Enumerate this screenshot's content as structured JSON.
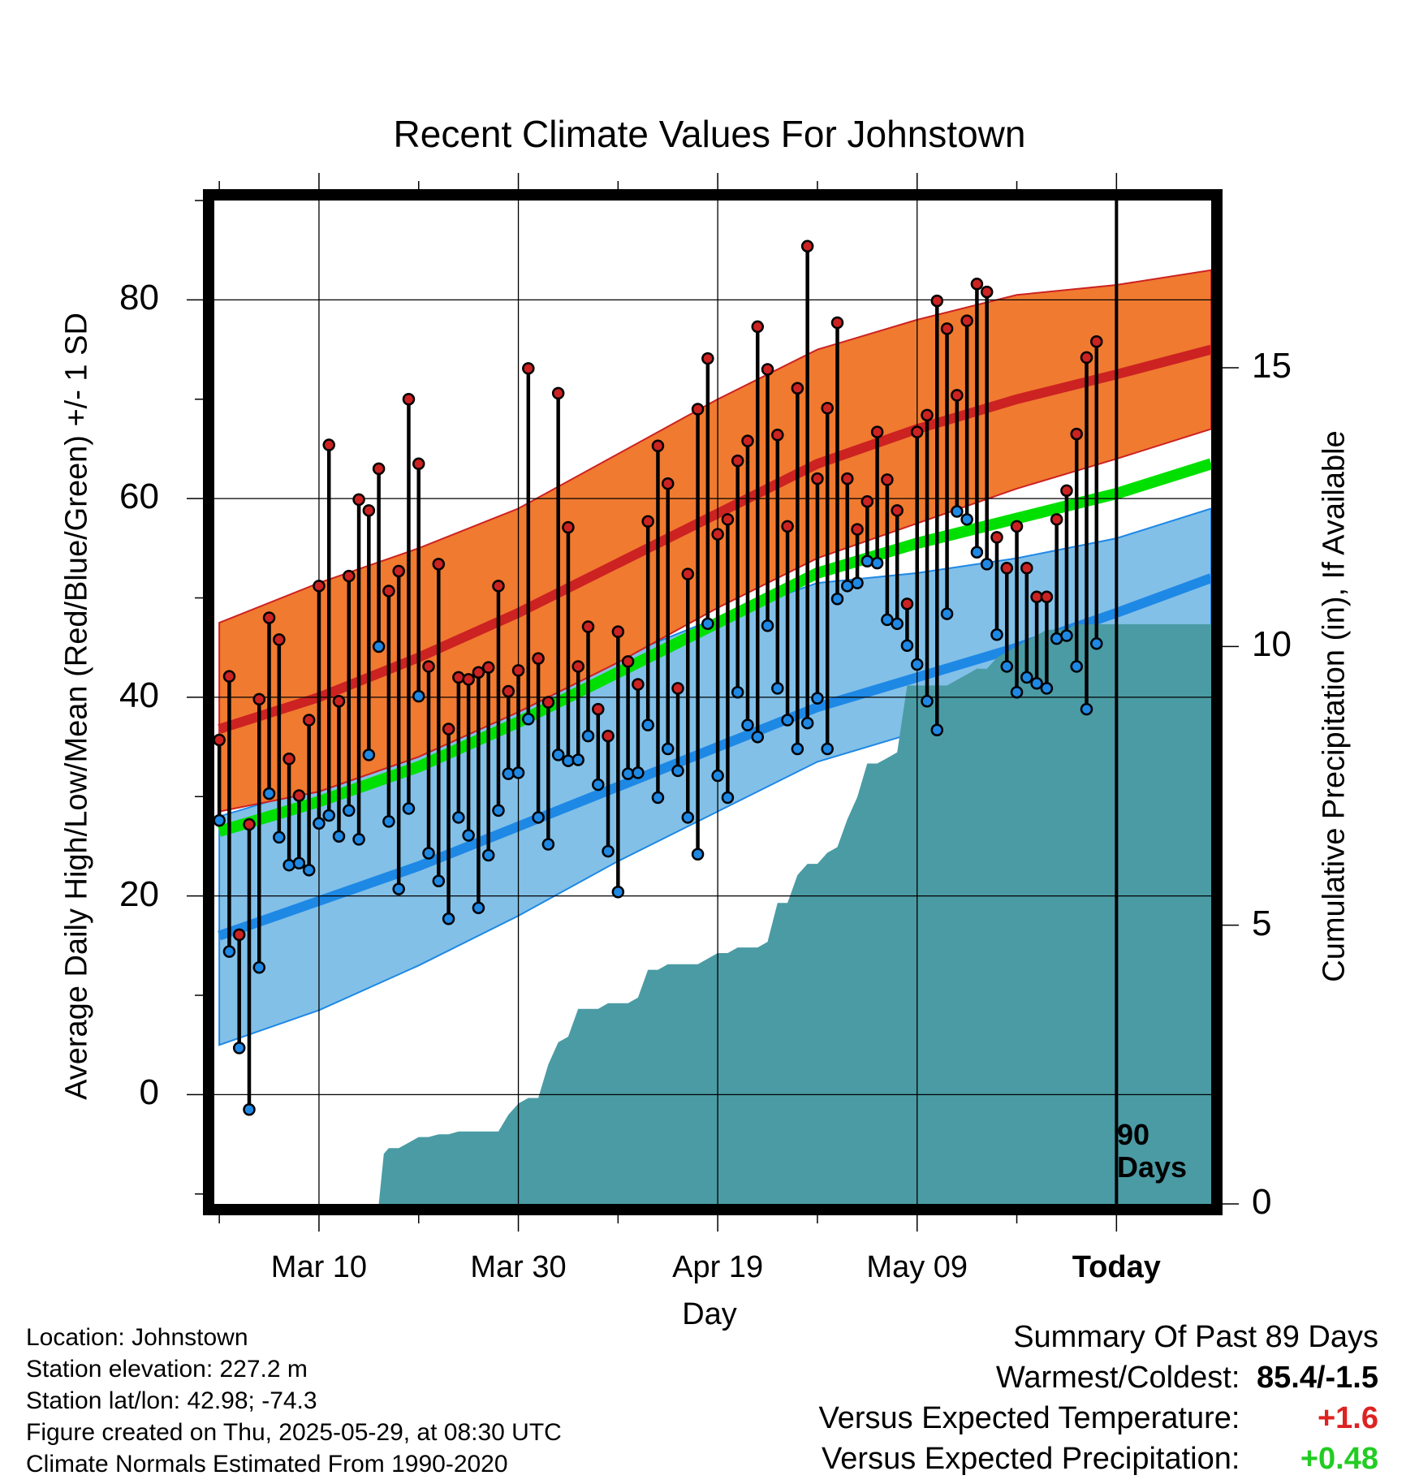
{
  "chart_data": {
    "type": "line",
    "title": "Recent Climate Values For Johnstown",
    "xlabel": "Day",
    "ylabel": "Average Daily High/Low/Mean (Red/Blue/Green) +/- 1 SD",
    "y2label": "Cumulative Precipitation (in), If Available",
    "x_ticks": [
      "Mar 10",
      "Mar 30",
      "Apr 19",
      "May 09",
      "Today"
    ],
    "x_tick_days": [
      10,
      30,
      50,
      70,
      90
    ],
    "y_ticks": [
      "0",
      "20",
      "40",
      "60",
      "80"
    ],
    "y2_ticks": [
      "0",
      "5",
      "10",
      "15"
    ],
    "xlim": [
      -0.5,
      99.5
    ],
    "ylim": [
      -11,
      90
    ],
    "y2lim": [
      0,
      18
    ],
    "today_label": [
      "90",
      "Days"
    ],
    "grid": true,
    "colors": {
      "high": "#cc2222",
      "high_band": "#f07a30",
      "low": "#1e88e5",
      "low_band": "#82c0e8",
      "mean": "#00e000",
      "precip": "#4a9ba4",
      "frame": "#000000"
    },
    "normals": {
      "days": [
        0,
        10,
        20,
        30,
        40,
        50,
        60,
        70,
        80,
        90,
        99.5
      ],
      "high_mean": [
        36.8,
        40.0,
        44.0,
        48.5,
        53.5,
        58.5,
        63.5,
        67.0,
        70.0,
        72.5,
        75.0
      ],
      "high_upper": [
        47.5,
        51.5,
        55.0,
        59.0,
        64.5,
        70.0,
        75.0,
        78.0,
        80.5,
        81.5,
        83.0
      ],
      "high_lower": [
        28.5,
        30.5,
        34.0,
        38.5,
        43.5,
        49.0,
        54.0,
        57.5,
        61.0,
        64.0,
        67.0
      ],
      "mean": [
        26.5,
        29.5,
        33.0,
        37.5,
        42.5,
        47.5,
        52.5,
        55.5,
        58.0,
        60.5,
        63.5
      ],
      "low_mean": [
        16.0,
        19.5,
        23.0,
        27.0,
        31.0,
        35.0,
        39.0,
        42.0,
        45.0,
        48.5,
        52.0
      ],
      "low_upper": [
        28.0,
        31.0,
        35.0,
        39.5,
        44.0,
        48.0,
        51.5,
        52.5,
        54.0,
        56.0,
        59.0
      ],
      "low_lower": [
        5.0,
        8.5,
        13.0,
        18.0,
        23.5,
        28.5,
        33.5,
        36.5,
        39.5,
        42.5,
        45.5
      ]
    },
    "daily_high": [
      35.7,
      42.1,
      16.1,
      27.2,
      39.8,
      48.0,
      45.8,
      33.8,
      30.1,
      37.7,
      51.2,
      65.4,
      39.6,
      52.2,
      59.9,
      58.8,
      63.0,
      50.7,
      52.7,
      70.0,
      63.5,
      43.1,
      53.4,
      36.8,
      42.0,
      41.8,
      42.5,
      43.0,
      51.2,
      40.6,
      42.7,
      73.1,
      43.9,
      39.5,
      70.6,
      57.1,
      43.1,
      47.1,
      38.8,
      36.1,
      46.6,
      43.6,
      41.3,
      57.7,
      65.3,
      61.5,
      40.9,
      52.4,
      69.0,
      74.1,
      56.4,
      57.9,
      63.8,
      65.8,
      77.3,
      73.0,
      66.4,
      57.2,
      71.1,
      85.4,
      62.0,
      69.1,
      77.7,
      62.0,
      56.9,
      59.7,
      66.7,
      61.9,
      58.8,
      49.4,
      66.7,
      68.4,
      79.9,
      77.1,
      70.4,
      77.9,
      81.6,
      80.8,
      56.1,
      53.0,
      57.2,
      53.0,
      50.1,
      50.1,
      57.9,
      60.8,
      66.5,
      74.2,
      75.8
    ],
    "daily_low": [
      27.6,
      14.4,
      4.7,
      -1.5,
      12.8,
      30.3,
      25.9,
      23.1,
      23.3,
      22.6,
      27.3,
      28.1,
      26.0,
      28.6,
      25.7,
      34.2,
      45.1,
      27.5,
      20.7,
      28.8,
      40.1,
      24.3,
      21.5,
      17.7,
      27.9,
      26.1,
      18.8,
      24.1,
      28.6,
      32.3,
      32.4,
      37.8,
      27.9,
      25.2,
      34.2,
      33.6,
      33.7,
      36.1,
      31.2,
      24.5,
      20.4,
      32.3,
      32.4,
      37.2,
      29.9,
      34.8,
      32.6,
      27.9,
      24.2,
      47.4,
      32.1,
      29.9,
      40.5,
      37.2,
      36.0,
      47.2,
      40.9,
      37.7,
      34.8,
      37.4,
      39.9,
      34.8,
      49.9,
      51.2,
      51.5,
      53.7,
      53.5,
      47.8,
      47.4,
      45.2,
      43.3,
      39.6,
      36.7,
      48.4,
      58.7,
      57.9,
      54.6,
      53.4,
      46.3,
      43.1,
      40.5,
      42.0,
      41.4,
      40.9,
      45.9,
      46.2,
      43.1,
      38.8,
      45.4
    ],
    "precip_cumulative": {
      "days": [
        0,
        16,
        16.5,
        17,
        18,
        19,
        20,
        21,
        22,
        23,
        24,
        25,
        26,
        27,
        28,
        29,
        30,
        31,
        32,
        33,
        34,
        35,
        36,
        37,
        38,
        39,
        40,
        41,
        42,
        43,
        44,
        45,
        46,
        47,
        48,
        49,
        50,
        51,
        52,
        53,
        54,
        55,
        56,
        57,
        58,
        59,
        60,
        61,
        62,
        63,
        64,
        65,
        66,
        67,
        68,
        69,
        70,
        71,
        72,
        73,
        74,
        75,
        76,
        77,
        78,
        79,
        80,
        81,
        82,
        83,
        84,
        85,
        86,
        87,
        88,
        89,
        90,
        99.5
      ],
      "values": [
        0,
        0,
        0.9,
        1.0,
        1.0,
        1.1,
        1.2,
        1.2,
        1.25,
        1.25,
        1.3,
        1.3,
        1.3,
        1.3,
        1.3,
        1.6,
        1.8,
        1.9,
        1.9,
        2.5,
        2.9,
        3.0,
        3.5,
        3.5,
        3.5,
        3.6,
        3.6,
        3.6,
        3.7,
        4.2,
        4.2,
        4.3,
        4.3,
        4.3,
        4.3,
        4.4,
        4.5,
        4.5,
        4.6,
        4.6,
        4.6,
        4.7,
        5.4,
        5.4,
        5.9,
        6.1,
        6.1,
        6.3,
        6.4,
        6.9,
        7.3,
        7.9,
        7.9,
        8.0,
        8.1,
        9.3,
        9.3,
        9.3,
        9.3,
        9.3,
        9.4,
        9.5,
        9.6,
        9.6,
        9.8,
        9.9,
        10.0,
        10.1,
        10.2,
        10.3,
        10.3,
        10.3,
        10.4,
        10.4,
        10.4,
        10.4,
        10.4,
        10.4
      ]
    }
  },
  "info": [
    "Location: Johnstown",
    "Station elevation: 227.2 m",
    "Station lat/lon: 42.98; -74.3",
    "Figure created on Thu, 2025-05-29, at 08:30 UTC",
    "Climate Normals Estimated From 1990-2020"
  ],
  "summary": {
    "heading": "Summary Of Past 89 Days",
    "warmest_label": "Warmest/Coldest:",
    "warmest_value": "85.4/-1.5",
    "temp_label": "Versus Expected Temperature:",
    "temp_value": "+1.6",
    "temp_color": "#dd2222",
    "precip_label": "Versus Expected Precipitation:",
    "precip_value": "+0.48",
    "precip_color": "#22cc22"
  }
}
